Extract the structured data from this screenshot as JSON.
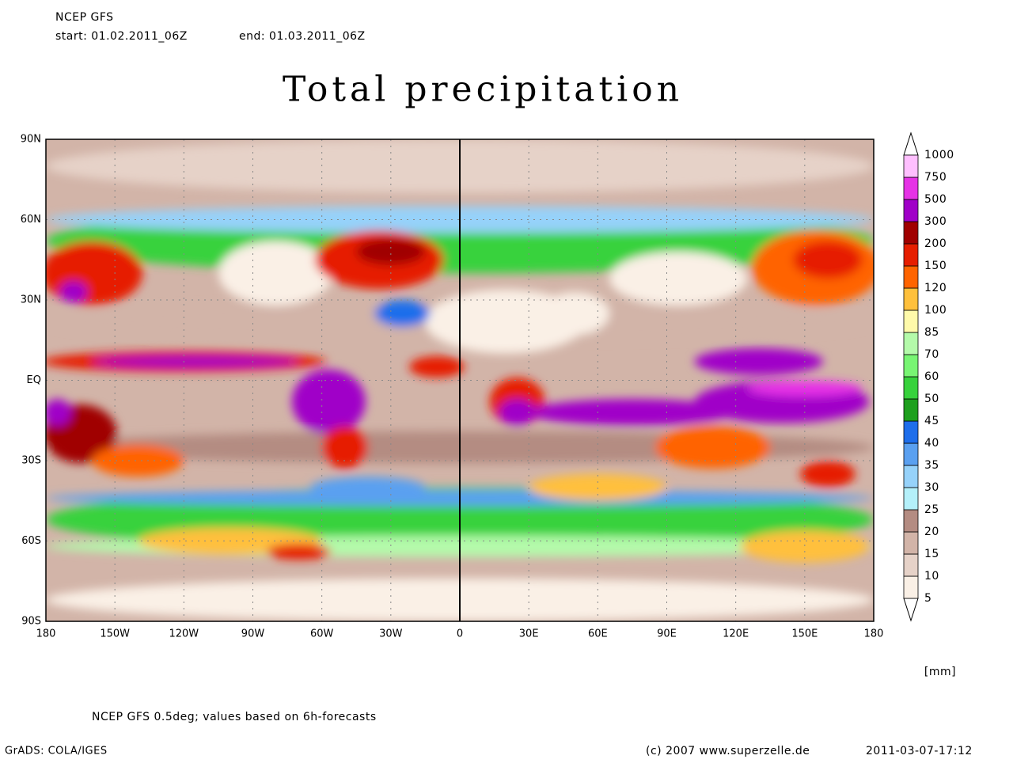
{
  "header": {
    "source": "NCEP GFS",
    "start": "start: 01.02.2011_06Z",
    "end": "end: 01.03.2011_06Z"
  },
  "title": "Total precipitation",
  "map": {
    "lat_labels": [
      "90N",
      "60N",
      "30N",
      "EQ",
      "30S",
      "60S",
      "90S"
    ],
    "lon_labels": [
      "180",
      "150W",
      "120W",
      "90W",
      "60W",
      "30W",
      "0",
      "30E",
      "60E",
      "90E",
      "120E",
      "150E",
      "180"
    ]
  },
  "colorbar": {
    "levels": [
      5,
      10,
      15,
      20,
      25,
      30,
      35,
      40,
      45,
      50,
      60,
      70,
      85,
      100,
      120,
      150,
      200,
      300,
      500,
      750,
      1000
    ],
    "colors": [
      "#faf0e6",
      "#e6d2c8",
      "#d2b4a8",
      "#b48c82",
      "#b4f0fa",
      "#96d2fa",
      "#5aa0f0",
      "#1e6eeb",
      "#1ea01e",
      "#37d23c",
      "#78f573",
      "#b4faaa",
      "#fffaaa",
      "#ffc03c",
      "#ff6400",
      "#e61e00",
      "#a00000",
      "#a000c8",
      "#e632e6",
      "#ffbfff"
    ],
    "unit": "[mm]"
  },
  "footer": {
    "note": "NCEP GFS 0.5deg; values based on 6h-forecasts",
    "software": "GrADS: COLA/IGES",
    "copyright": "(c) 2007 www.superzelle.de",
    "timestamp": "2011-03-07-17:12"
  }
}
